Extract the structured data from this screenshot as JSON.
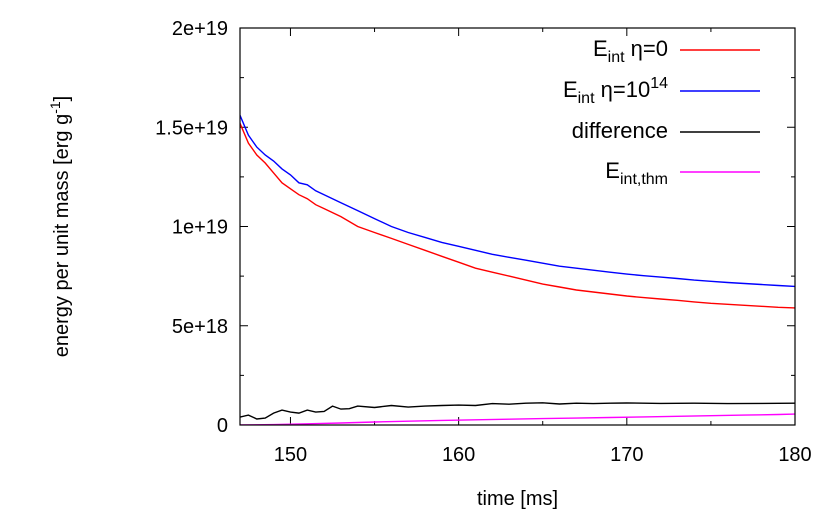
{
  "chart_data": {
    "type": "line",
    "xlabel": "time [ms]",
    "ylabel_main": "energy per unit mass [erg g",
    "ylabel_sup": "-1",
    "ylabel_end": "]",
    "xlim": [
      147,
      180
    ],
    "ylim": [
      0,
      2e+19
    ],
    "xticks": [
      150,
      160,
      170,
      180
    ],
    "xtick_labels": [
      "150",
      "160",
      "170",
      "180"
    ],
    "yticks": [
      0,
      5e+18,
      1e+19,
      1.5e+19,
      2e+19
    ],
    "ytick_labels": [
      "0",
      "5e+18",
      "1e+19",
      "1.5e+19",
      "2e+19"
    ],
    "legend_position": "top-right",
    "grid": false,
    "series": [
      {
        "name": "E_int η=0",
        "legend": {
          "base": "E",
          "sub": "int",
          "tail": " η=0",
          "sup": ""
        },
        "color": "#ff0000",
        "x": [
          147,
          147.5,
          148,
          148.5,
          149,
          149.5,
          150,
          150.5,
          151,
          151.5,
          152,
          153,
          154,
          155,
          156,
          157,
          158,
          159,
          160,
          161,
          162,
          163,
          164,
          165,
          166,
          167,
          168,
          169,
          170,
          171,
          172,
          173,
          174,
          175,
          176,
          177,
          178,
          179,
          180
        ],
        "y": [
          1.52e+19,
          1.42e+19,
          1.36e+19,
          1.32e+19,
          1.27e+19,
          1.22e+19,
          1.19e+19,
          1.16e+19,
          1.14e+19,
          1.11e+19,
          1.09e+19,
          1.05e+19,
          1e+19,
          9.7e+18,
          9.4e+18,
          9.1e+18,
          8.8e+18,
          8.5e+18,
          8.2e+18,
          7.9e+18,
          7.7e+18,
          7.5e+18,
          7.3e+18,
          7.1e+18,
          6.95e+18,
          6.8e+18,
          6.7e+18,
          6.6e+18,
          6.5e+18,
          6.42e+18,
          6.35e+18,
          6.28e+18,
          6.2e+18,
          6.13e+18,
          6.08e+18,
          6.03e+18,
          5.98e+18,
          5.93e+18,
          5.9e+18
        ]
      },
      {
        "name": "E_int η=10^14",
        "legend": {
          "base": "E",
          "sub": "int",
          "tail": " η=10",
          "sup": "14"
        },
        "color": "#0000ff",
        "x": [
          147,
          147.5,
          148,
          148.5,
          149,
          149.5,
          150,
          150.5,
          151,
          151.5,
          152,
          153,
          154,
          155,
          156,
          157,
          158,
          159,
          160,
          161,
          162,
          163,
          164,
          165,
          166,
          167,
          168,
          169,
          170,
          171,
          172,
          173,
          174,
          175,
          176,
          177,
          178,
          179,
          180
        ],
        "y": [
          1.56e+19,
          1.46e+19,
          1.4e+19,
          1.36e+19,
          1.33e+19,
          1.29e+19,
          1.26e+19,
          1.22e+19,
          1.21e+19,
          1.18e+19,
          1.16e+19,
          1.12e+19,
          1.08e+19,
          1.04e+19,
          1e+19,
          9.7e+18,
          9.45e+18,
          9.2e+18,
          9e+18,
          8.8e+18,
          8.6e+18,
          8.45e+18,
          8.3e+18,
          8.15e+18,
          8e+18,
          7.9e+18,
          7.8e+18,
          7.7e+18,
          7.6e+18,
          7.52e+18,
          7.45e+18,
          7.38e+18,
          7.3e+18,
          7.24e+18,
          7.18e+18,
          7.13e+18,
          7.08e+18,
          7.03e+18,
          6.98e+18
        ]
      },
      {
        "name": "difference",
        "legend": {
          "base": "difference",
          "sub": "",
          "tail": "",
          "sup": ""
        },
        "color": "#000000",
        "x": [
          147,
          147.5,
          148,
          148.5,
          149,
          149.5,
          150,
          150.5,
          151,
          151.5,
          152,
          152.5,
          153,
          153.5,
          154,
          155,
          156,
          157,
          158,
          159,
          160,
          161,
          162,
          163,
          164,
          165,
          166,
          167,
          168,
          169,
          170,
          172,
          174,
          176,
          178,
          180
        ],
        "y": [
          4e+17,
          5e+17,
          3e+17,
          3.5e+17,
          6e+17,
          7.5e+17,
          6.5e+17,
          6e+17,
          7.5e+17,
          6.5e+17,
          6.8e+17,
          9.5e+17,
          8e+17,
          8.2e+17,
          9.5e+17,
          8.8e+17,
          9.8e+17,
          9e+17,
          9.5e+17,
          9.8e+17,
          1e+18,
          9.8e+17,
          1.08e+18,
          1.05e+18,
          1.1e+18,
          1.12e+18,
          1.06e+18,
          1.1e+18,
          1.08e+18,
          1.1e+18,
          1.11e+18,
          1.09e+18,
          1.1e+18,
          1.08e+18,
          1.09e+18,
          1.1e+18
        ]
      },
      {
        "name": "E_int,thm",
        "legend": {
          "base": "E",
          "sub": "int,thm",
          "tail": "",
          "sup": ""
        },
        "color": "#ff00ff",
        "x": [
          147,
          149,
          151,
          153,
          155,
          157,
          159,
          161,
          163,
          165,
          167,
          169,
          171,
          173,
          175,
          177,
          179,
          180
        ],
        "y": [
          0,
          2e+16,
          6e+16,
          1e+17,
          1.5e+17,
          1.9e+17,
          2.3e+17,
          2.6e+17,
          2.9e+17,
          3.2e+17,
          3.5e+17,
          3.8e+17,
          4.1e+17,
          4.4e+17,
          4.7e+17,
          5e+17,
          5.3e+17,
          5.5e+17
        ]
      }
    ]
  }
}
